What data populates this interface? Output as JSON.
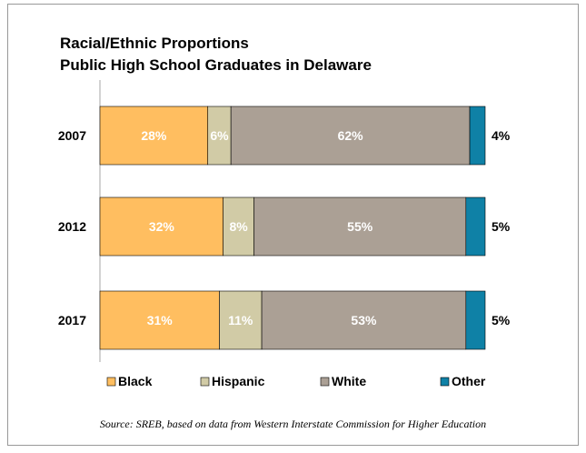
{
  "title_lines": [
    "Racial/Ethnic Proportions",
    "Public High School Graduates in Delaware"
  ],
  "source": "Source: SREB, based on data from Western Interstate Commission for Higher Education",
  "chart_data": {
    "type": "bar",
    "orientation": "horizontal",
    "stacked": true,
    "title": "Racial/Ethnic Proportions Public High School Graduates in Delaware",
    "categories": [
      "2007",
      "2012",
      "2017"
    ],
    "series": [
      {
        "name": "Black",
        "values": [
          28,
          32,
          31
        ],
        "labels": [
          "28%",
          "32%",
          "31%"
        ],
        "color": "#FFBE60"
      },
      {
        "name": "Hispanic",
        "values": [
          6,
          8,
          11
        ],
        "labels": [
          "6%",
          "8%",
          "11%"
        ],
        "color": "#D1CBA6"
      },
      {
        "name": "White",
        "values": [
          62,
          55,
          53
        ],
        "labels": [
          "62%",
          "55%",
          "53%"
        ],
        "color": "#ABA095"
      },
      {
        "name": "Other",
        "values": [
          4,
          5,
          5
        ],
        "labels": [
          "4%",
          "5%",
          "5%"
        ],
        "color": "#0F81A6"
      }
    ],
    "label_colors": {
      "inside": "#FFFFFF",
      "outside": "#000000"
    },
    "legend_position": "bottom",
    "grid": false,
    "xlim": [
      0,
      100
    ]
  }
}
